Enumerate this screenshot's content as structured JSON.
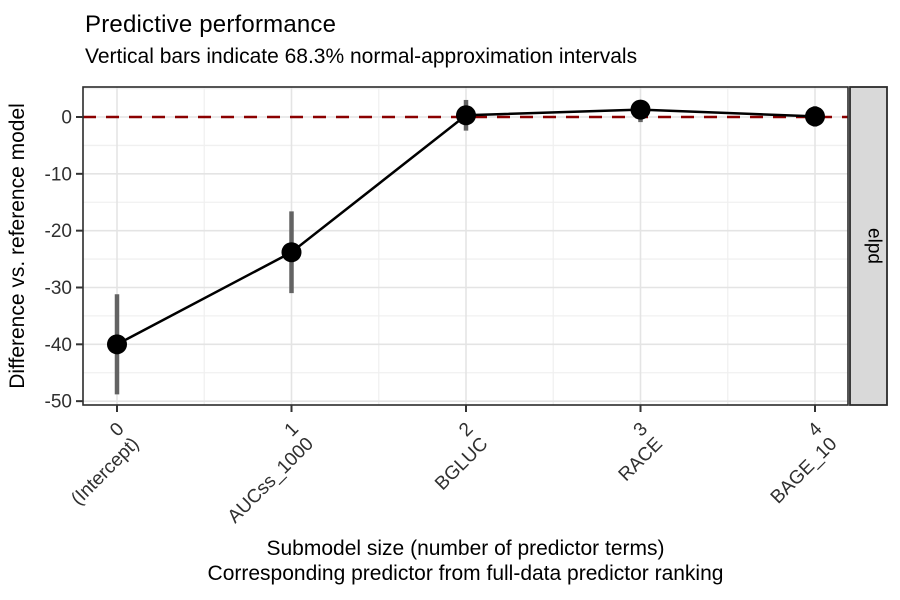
{
  "chart_data": {
    "type": "line",
    "title": "Predictive performance",
    "subtitle": "Vertical bars indicate 68.3% normal-approximation intervals",
    "xlabel": [
      "Submodel size (number of predictor terms)",
      "Corresponding predictor from full-data predictor ranking"
    ],
    "ylabel": "Difference vs. reference model",
    "facet_label": "elpd",
    "x": [
      0,
      1,
      2,
      3,
      4
    ],
    "x_tick_labels": [
      [
        "0",
        "(Intercept)"
      ],
      [
        "1",
        "AUCss_1000"
      ],
      [
        "2",
        "BGLUC"
      ],
      [
        "3",
        "RACE"
      ],
      [
        "4",
        "BAGE_10"
      ]
    ],
    "y": [
      -40,
      -23.8,
      0.3,
      1.3,
      0.1
    ],
    "interval_lower": [
      -48.8,
      -31.0,
      -2.4,
      -0.9,
      -1.7
    ],
    "interval_upper": [
      -31.2,
      -16.6,
      3.0,
      2.9,
      1.9
    ],
    "interval_level": "68.3%",
    "reference_line_y": 0,
    "y_ticks": [
      0,
      -10,
      -20,
      -30,
      -40,
      -50
    ],
    "ylim": [
      -50.7,
      5.3
    ],
    "xlim": [
      -0.2,
      4.2
    ],
    "grid": true,
    "legend": false,
    "colors": {
      "line": "#000000",
      "point": "#000000",
      "interval": "#636363",
      "reference_line": "#8B0000",
      "strip_fill": "#D9D9D9",
      "panel_border": "#2B2B2B",
      "grid_major": "#E4E4E4",
      "grid_minor": "#F0F0F0",
      "tick_text": "#303030",
      "tick_mark": "#333333"
    }
  }
}
